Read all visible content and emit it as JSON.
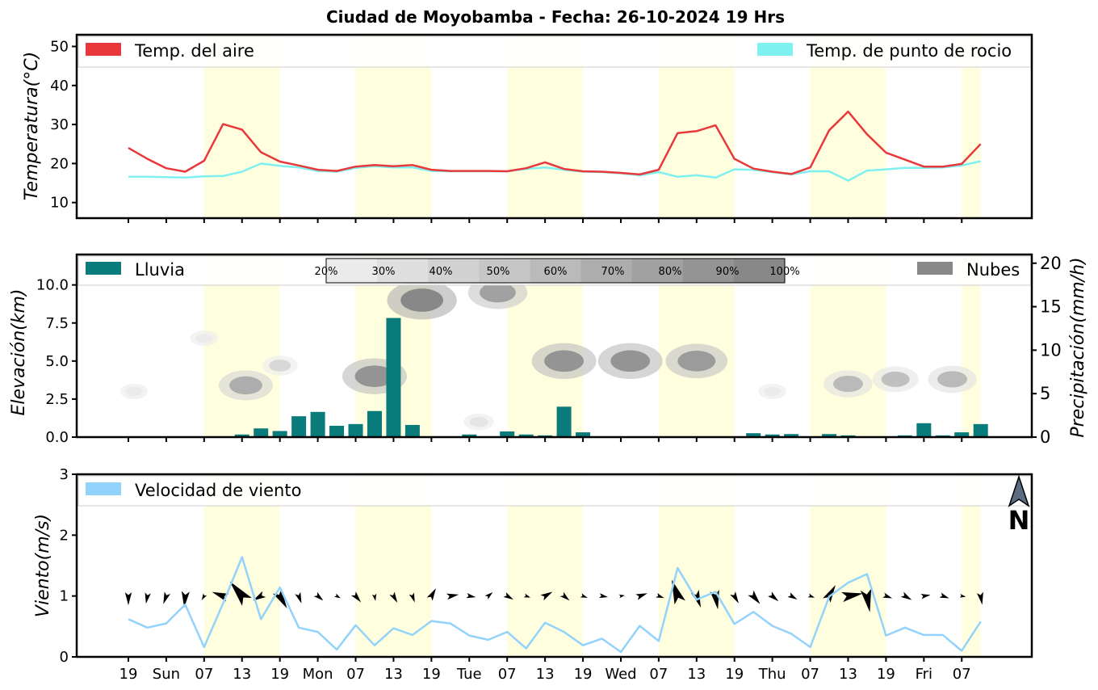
{
  "title": "Ciudad de Moyobamba   -   Fecha: 26-10-2024 19 Hrs",
  "colors": {
    "air_temp": "#e8383b",
    "dew_point": "#7ff0f0",
    "rain": "#0a7b7b",
    "clouds": "#888888",
    "wind": "#93d3fb",
    "day_band": "#ffffe0"
  },
  "x_ticks": [
    "19",
    "Sun",
    "07",
    "13",
    "19",
    "Mon",
    "07",
    "13",
    "19",
    "Tue",
    "07",
    "13",
    "19",
    "Wed",
    "07",
    "13",
    "19",
    "Thu",
    "07",
    "13",
    "19",
    "Fri",
    "07"
  ],
  "day_bands": [
    [
      4,
      8
    ],
    [
      12,
      16
    ],
    [
      20,
      24
    ],
    [
      28,
      32
    ],
    [
      36,
      40
    ],
    [
      44,
      45
    ]
  ],
  "north_arrow_label": "N",
  "chart_data": [
    {
      "type": "line",
      "ylabel": "Temperatura(°C)",
      "ylim": [
        6,
        53
      ],
      "yticks": [
        10,
        20,
        30,
        40,
        50
      ],
      "legend": [
        "Temp. del aire",
        "Temp. de punto de rocio"
      ],
      "series": [
        {
          "name": "Temp. del aire",
          "values": [
            24.0,
            21.2,
            18.8,
            17.9,
            20.7,
            30.1,
            28.7,
            22.9,
            20.5,
            19.5,
            18.4,
            18.1,
            19.2,
            19.6,
            19.3,
            19.6,
            18.4,
            18.1,
            18.1,
            18.1,
            18.0,
            18.8,
            20.3,
            18.6,
            18.0,
            17.9,
            17.6,
            17.2,
            18.4,
            27.8,
            28.3,
            29.8,
            21.2,
            18.7,
            17.9,
            17.3,
            19.0,
            28.5,
            33.3,
            27.5,
            22.8,
            21.0,
            19.2,
            19.2,
            19.9,
            25.0
          ]
        },
        {
          "name": "Temp. de punto de rocio",
          "values": [
            16.6,
            16.6,
            16.5,
            16.4,
            16.7,
            16.8,
            17.9,
            20.0,
            19.4,
            19.0,
            18.1,
            17.9,
            18.9,
            19.3,
            19.0,
            19.0,
            18.1,
            18.0,
            18.0,
            18.0,
            18.0,
            18.6,
            19.0,
            18.4,
            17.9,
            17.8,
            17.5,
            17.0,
            17.8,
            16.6,
            17.0,
            16.4,
            18.5,
            18.4,
            17.8,
            17.2,
            18.0,
            18.0,
            15.6,
            18.2,
            18.5,
            18.9,
            18.9,
            19.0,
            19.5,
            20.6
          ]
        }
      ]
    },
    {
      "type": "bar",
      "ylabel": "Elevación(km)",
      "ylabel_right": "Precipitación(mm/h)",
      "ylim": [
        0,
        12
      ],
      "yticks": [
        0.0,
        2.5,
        5.0,
        7.5,
        10.0
      ],
      "y2lim": [
        0,
        21
      ],
      "y2ticks": [
        0,
        5,
        10,
        15,
        20
      ],
      "legend": [
        "Lluvia",
        "Nubes"
      ],
      "colorbar_labels": [
        "20%",
        "30%",
        "40%",
        "50%",
        "60%",
        "70%",
        "80%",
        "90%",
        "100%"
      ],
      "series": [
        {
          "name": "Lluvia",
          "values": [
            0,
            0,
            0,
            0,
            0.05,
            0.05,
            0.3,
            1.0,
            0.7,
            2.4,
            2.9,
            1.3,
            1.5,
            3.0,
            13.7,
            1.4,
            0,
            0,
            0.3,
            0,
            0.65,
            0.3,
            0.2,
            3.5,
            0.55,
            0,
            0,
            0,
            0,
            0,
            0,
            0.05,
            0.05,
            0.45,
            0.3,
            0.35,
            0,
            0.35,
            0.2,
            0.05,
            0.05,
            0.2,
            1.6,
            0.2,
            0.55,
            1.5
          ]
        },
        {
          "name": "Nubes",
          "clusters": [
            {
              "x": 0.3,
              "elev": 3.0,
              "cover": 20
            },
            {
              "x": 4.0,
              "elev": 6.5,
              "cover": 20
            },
            {
              "x": 6.2,
              "elev": 3.4,
              "cover": 70
            },
            {
              "x": 8.0,
              "elev": 4.7,
              "cover": 35
            },
            {
              "x": 13.0,
              "elev": 4.0,
              "cover": 90
            },
            {
              "x": 15.5,
              "elev": 9.0,
              "cover": 100
            },
            {
              "x": 18.5,
              "elev": 1.0,
              "cover": 25
            },
            {
              "x": 19.5,
              "elev": 9.5,
              "cover": 80
            },
            {
              "x": 23.0,
              "elev": 5.0,
              "cover": 90
            },
            {
              "x": 26.5,
              "elev": 5.0,
              "cover": 90
            },
            {
              "x": 30.0,
              "elev": 5.0,
              "cover": 85
            },
            {
              "x": 34.0,
              "elev": 3.0,
              "cover": 20
            },
            {
              "x": 38.0,
              "elev": 3.5,
              "cover": 60
            },
            {
              "x": 40.5,
              "elev": 3.8,
              "cover": 55
            },
            {
              "x": 43.5,
              "elev": 3.8,
              "cover": 60
            }
          ]
        }
      ]
    },
    {
      "type": "line",
      "ylabel": "Viento(m/s)",
      "ylim": [
        0,
        3
      ],
      "yticks": [
        0,
        1,
        2,
        3
      ],
      "legend": [
        "Velocidad de viento"
      ],
      "series": [
        {
          "name": "Velocidad de viento",
          "values": [
            0.62,
            0.48,
            0.55,
            0.86,
            0.16,
            0.88,
            1.64,
            0.62,
            1.14,
            0.48,
            0.41,
            0.12,
            0.52,
            0.19,
            0.47,
            0.36,
            0.59,
            0.55,
            0.35,
            0.28,
            0.41,
            0.14,
            0.56,
            0.41,
            0.19,
            0.3,
            0.08,
            0.51,
            0.26,
            1.46,
            0.94,
            1.07,
            0.54,
            0.74,
            0.51,
            0.38,
            0.16,
            0.99,
            1.22,
            1.36,
            0.35,
            0.48,
            0.36,
            0.36,
            0.1,
            0.58
          ]
        },
        {
          "name": "Dirección de viento",
          "values": [
            90,
            100,
            110,
            95,
            120,
            200,
            230,
            150,
            60,
            70,
            40,
            30,
            50,
            80,
            60,
            70,
            300,
            350,
            10,
            320,
            30,
            20,
            330,
            40,
            20,
            10,
            350,
            340,
            20,
            250,
            70,
            80,
            60,
            50,
            40,
            30,
            20,
            300,
            350,
            80,
            20,
            30,
            350,
            20,
            10,
            80
          ]
        }
      ]
    }
  ]
}
